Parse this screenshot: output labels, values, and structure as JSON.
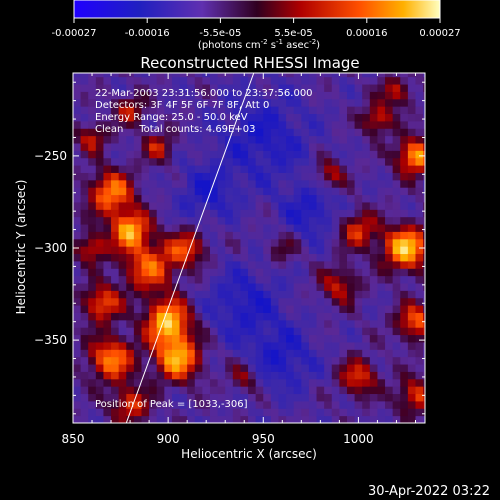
{
  "colorbar": {
    "ticks": [
      "-0.00027",
      "-0.00016",
      "-5.5e-05",
      "5.5e-05",
      "0.00016",
      "0.00027"
    ],
    "units_main": "(photons cm",
    "units_sup1": "-2",
    "units_mid1": " s",
    "units_sup2": "-1",
    "units_mid2": " asec",
    "units_sup3": "-2",
    "units_end": ")"
  },
  "chart_data": {
    "type": "heatmap",
    "title": "Reconstructed RHESSI Image",
    "xlabel": "Heliocentric X (arcsec)",
    "ylabel": "Heliocentric Y (arcsec)",
    "xlim": [
      850,
      1035
    ],
    "ylim": [
      -395,
      -205
    ],
    "x_ticks": [
      850,
      900,
      950,
      1000
    ],
    "y_ticks": [
      -250,
      -300,
      -350
    ],
    "x_tick_labels": [
      "850",
      "900",
      "950",
      "1000"
    ],
    "y_tick_labels": [
      "−250",
      "−300",
      "−350"
    ],
    "colorbar_range": [
      -0.00027,
      0.00027
    ],
    "peak": [
      1033,
      -306
    ],
    "limb_line": [
      [
        878,
        -395
      ],
      [
        945,
        -205
      ]
    ]
  },
  "annotations": {
    "time_range": "22-Mar-2003 23:31:56.000 to 23:37:56.000",
    "detectors": "Detectors: 3F 4F 5F 6F 7F 8F, Att 0",
    "energy": "Energy Range: 25.0 - 50.0 keV",
    "clean": "Clean     Total counts: 4.69E+03",
    "peak": "Position of Peak = [1033,-306]"
  },
  "timestamp": "30-Apr-2022 03:22"
}
